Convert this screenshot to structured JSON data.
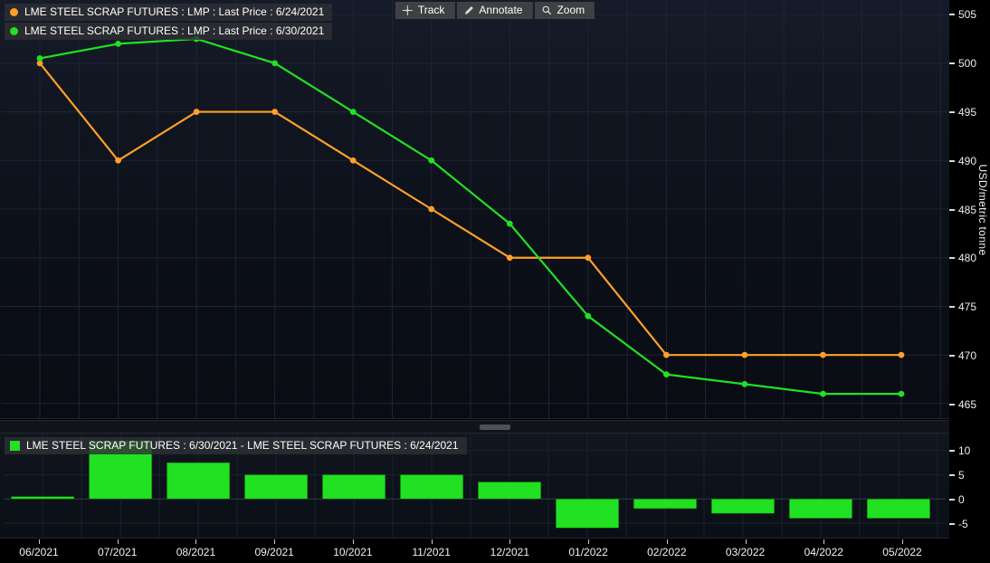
{
  "toolbar": {
    "items": [
      {
        "label": "Track",
        "icon": "crosshair-icon"
      },
      {
        "label": "Annotate",
        "icon": "pencil-icon"
      },
      {
        "label": "Zoom",
        "icon": "magnifier-icon"
      }
    ]
  },
  "colors": {
    "orange_series": "#ffa028",
    "green_series": "#22e022",
    "axis_text": "#ededed",
    "grid": "#1d2534"
  },
  "chart_data": [
    {
      "type": "line",
      "x": [
        "06/2021",
        "07/2021",
        "08/2021",
        "09/2021",
        "10/2021",
        "11/2021",
        "12/2021",
        "01/2022",
        "02/2022",
        "03/2022",
        "04/2022",
        "05/2022"
      ],
      "series": [
        {
          "name": "LME STEEL SCRAP FUTURES : LMP : Last Price : 6/24/2021",
          "color": "#ffa028",
          "values": [
            500,
            490,
            495,
            495,
            490,
            485,
            480,
            480,
            470,
            470,
            470,
            470
          ]
        },
        {
          "name": "LME STEEL SCRAP FUTURES : LMP : Last Price : 6/30/2021",
          "color": "#22e022",
          "values": [
            500.5,
            502,
            502.5,
            500,
            495,
            490,
            483.5,
            474,
            468,
            467,
            466,
            466
          ]
        }
      ],
      "ylabel": "USD/metric tonne",
      "yticks": [
        505,
        500,
        495,
        490,
        485,
        480,
        475,
        470,
        465
      ],
      "ylim": [
        463.5,
        506.5
      ],
      "grid": true,
      "legend_position": "top-left"
    },
    {
      "type": "bar",
      "name": "LME STEEL SCRAP FUTURES : 6/30/2021 - LME STEEL SCRAP FUTURES : 6/24/2021",
      "color": "#22e022",
      "categories": [
        "06/2021",
        "07/2021",
        "08/2021",
        "09/2021",
        "10/2021",
        "11/2021",
        "12/2021",
        "01/2022",
        "02/2022",
        "03/2022",
        "04/2022",
        "05/2022"
      ],
      "values": [
        0.5,
        12,
        7.5,
        5,
        5,
        5,
        3.5,
        -6,
        -2,
        -3,
        -4,
        -4
      ],
      "yticks": [
        10,
        5,
        0,
        -5
      ],
      "ylim": [
        -8,
        13.5
      ],
      "grid": true,
      "legend_position": "top-left"
    }
  ]
}
